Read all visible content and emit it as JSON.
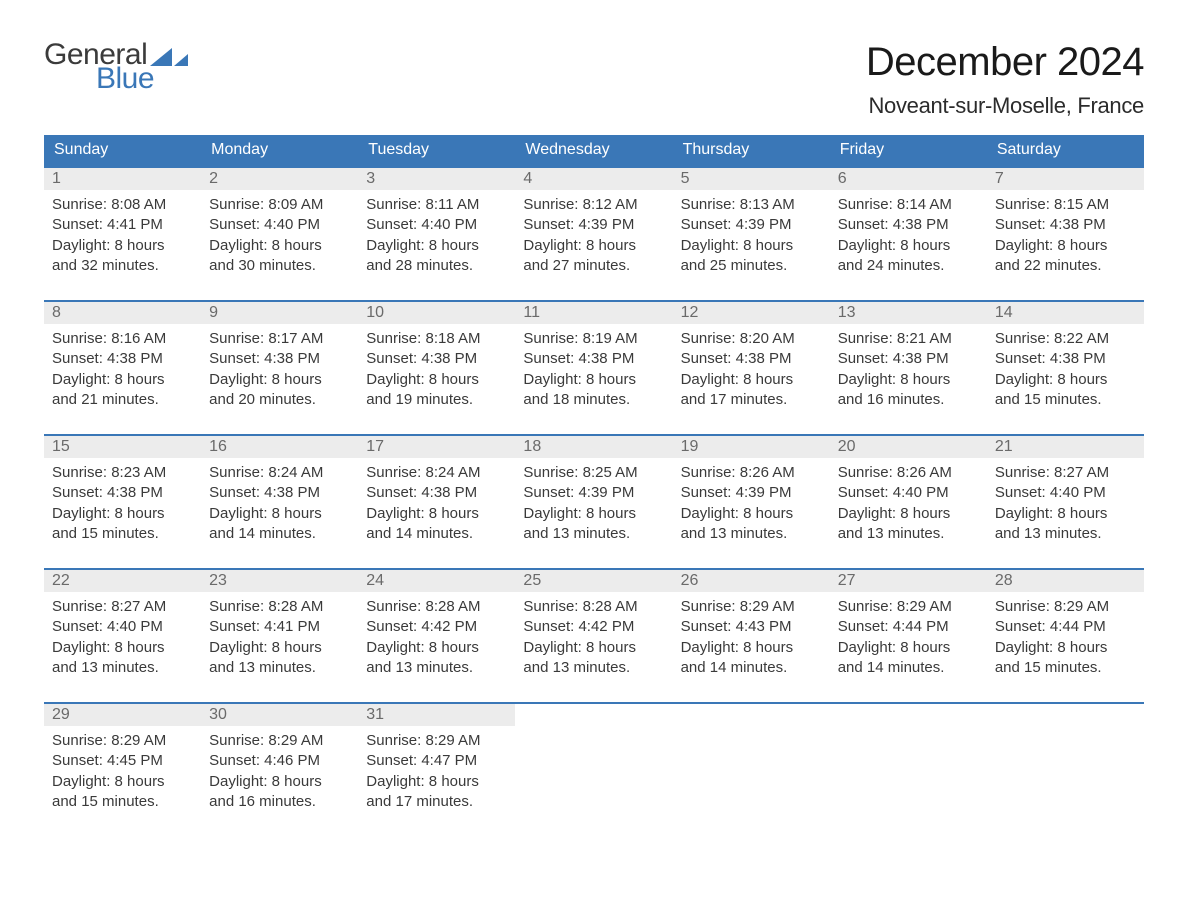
{
  "logo": {
    "word1": "General",
    "word2": "Blue"
  },
  "header": {
    "month_title": "December 2024",
    "location": "Noveant-sur-Moselle, France"
  },
  "calendar": {
    "primary_color": "#3a77b7",
    "daynum_bg": "#ececec",
    "text_color": "#3a3a3a",
    "weekdays": [
      "Sunday",
      "Monday",
      "Tuesday",
      "Wednesday",
      "Thursday",
      "Friday",
      "Saturday"
    ],
    "weeks": [
      [
        {
          "num": "1",
          "sunrise": "Sunrise: 8:08 AM",
          "sunset": "Sunset: 4:41 PM",
          "day1": "Daylight: 8 hours",
          "day2": "and 32 minutes."
        },
        {
          "num": "2",
          "sunrise": "Sunrise: 8:09 AM",
          "sunset": "Sunset: 4:40 PM",
          "day1": "Daylight: 8 hours",
          "day2": "and 30 minutes."
        },
        {
          "num": "3",
          "sunrise": "Sunrise: 8:11 AM",
          "sunset": "Sunset: 4:40 PM",
          "day1": "Daylight: 8 hours",
          "day2": "and 28 minutes."
        },
        {
          "num": "4",
          "sunrise": "Sunrise: 8:12 AM",
          "sunset": "Sunset: 4:39 PM",
          "day1": "Daylight: 8 hours",
          "day2": "and 27 minutes."
        },
        {
          "num": "5",
          "sunrise": "Sunrise: 8:13 AM",
          "sunset": "Sunset: 4:39 PM",
          "day1": "Daylight: 8 hours",
          "day2": "and 25 minutes."
        },
        {
          "num": "6",
          "sunrise": "Sunrise: 8:14 AM",
          "sunset": "Sunset: 4:38 PM",
          "day1": "Daylight: 8 hours",
          "day2": "and 24 minutes."
        },
        {
          "num": "7",
          "sunrise": "Sunrise: 8:15 AM",
          "sunset": "Sunset: 4:38 PM",
          "day1": "Daylight: 8 hours",
          "day2": "and 22 minutes."
        }
      ],
      [
        {
          "num": "8",
          "sunrise": "Sunrise: 8:16 AM",
          "sunset": "Sunset: 4:38 PM",
          "day1": "Daylight: 8 hours",
          "day2": "and 21 minutes."
        },
        {
          "num": "9",
          "sunrise": "Sunrise: 8:17 AM",
          "sunset": "Sunset: 4:38 PM",
          "day1": "Daylight: 8 hours",
          "day2": "and 20 minutes."
        },
        {
          "num": "10",
          "sunrise": "Sunrise: 8:18 AM",
          "sunset": "Sunset: 4:38 PM",
          "day1": "Daylight: 8 hours",
          "day2": "and 19 minutes."
        },
        {
          "num": "11",
          "sunrise": "Sunrise: 8:19 AM",
          "sunset": "Sunset: 4:38 PM",
          "day1": "Daylight: 8 hours",
          "day2": "and 18 minutes."
        },
        {
          "num": "12",
          "sunrise": "Sunrise: 8:20 AM",
          "sunset": "Sunset: 4:38 PM",
          "day1": "Daylight: 8 hours",
          "day2": "and 17 minutes."
        },
        {
          "num": "13",
          "sunrise": "Sunrise: 8:21 AM",
          "sunset": "Sunset: 4:38 PM",
          "day1": "Daylight: 8 hours",
          "day2": "and 16 minutes."
        },
        {
          "num": "14",
          "sunrise": "Sunrise: 8:22 AM",
          "sunset": "Sunset: 4:38 PM",
          "day1": "Daylight: 8 hours",
          "day2": "and 15 minutes."
        }
      ],
      [
        {
          "num": "15",
          "sunrise": "Sunrise: 8:23 AM",
          "sunset": "Sunset: 4:38 PM",
          "day1": "Daylight: 8 hours",
          "day2": "and 15 minutes."
        },
        {
          "num": "16",
          "sunrise": "Sunrise: 8:24 AM",
          "sunset": "Sunset: 4:38 PM",
          "day1": "Daylight: 8 hours",
          "day2": "and 14 minutes."
        },
        {
          "num": "17",
          "sunrise": "Sunrise: 8:24 AM",
          "sunset": "Sunset: 4:38 PM",
          "day1": "Daylight: 8 hours",
          "day2": "and 14 minutes."
        },
        {
          "num": "18",
          "sunrise": "Sunrise: 8:25 AM",
          "sunset": "Sunset: 4:39 PM",
          "day1": "Daylight: 8 hours",
          "day2": "and 13 minutes."
        },
        {
          "num": "19",
          "sunrise": "Sunrise: 8:26 AM",
          "sunset": "Sunset: 4:39 PM",
          "day1": "Daylight: 8 hours",
          "day2": "and 13 minutes."
        },
        {
          "num": "20",
          "sunrise": "Sunrise: 8:26 AM",
          "sunset": "Sunset: 4:40 PM",
          "day1": "Daylight: 8 hours",
          "day2": "and 13 minutes."
        },
        {
          "num": "21",
          "sunrise": "Sunrise: 8:27 AM",
          "sunset": "Sunset: 4:40 PM",
          "day1": "Daylight: 8 hours",
          "day2": "and 13 minutes."
        }
      ],
      [
        {
          "num": "22",
          "sunrise": "Sunrise: 8:27 AM",
          "sunset": "Sunset: 4:40 PM",
          "day1": "Daylight: 8 hours",
          "day2": "and 13 minutes."
        },
        {
          "num": "23",
          "sunrise": "Sunrise: 8:28 AM",
          "sunset": "Sunset: 4:41 PM",
          "day1": "Daylight: 8 hours",
          "day2": "and 13 minutes."
        },
        {
          "num": "24",
          "sunrise": "Sunrise: 8:28 AM",
          "sunset": "Sunset: 4:42 PM",
          "day1": "Daylight: 8 hours",
          "day2": "and 13 minutes."
        },
        {
          "num": "25",
          "sunrise": "Sunrise: 8:28 AM",
          "sunset": "Sunset: 4:42 PM",
          "day1": "Daylight: 8 hours",
          "day2": "and 13 minutes."
        },
        {
          "num": "26",
          "sunrise": "Sunrise: 8:29 AM",
          "sunset": "Sunset: 4:43 PM",
          "day1": "Daylight: 8 hours",
          "day2": "and 14 minutes."
        },
        {
          "num": "27",
          "sunrise": "Sunrise: 8:29 AM",
          "sunset": "Sunset: 4:44 PM",
          "day1": "Daylight: 8 hours",
          "day2": "and 14 minutes."
        },
        {
          "num": "28",
          "sunrise": "Sunrise: 8:29 AM",
          "sunset": "Sunset: 4:44 PM",
          "day1": "Daylight: 8 hours",
          "day2": "and 15 minutes."
        }
      ],
      [
        {
          "num": "29",
          "sunrise": "Sunrise: 8:29 AM",
          "sunset": "Sunset: 4:45 PM",
          "day1": "Daylight: 8 hours",
          "day2": "and 15 minutes."
        },
        {
          "num": "30",
          "sunrise": "Sunrise: 8:29 AM",
          "sunset": "Sunset: 4:46 PM",
          "day1": "Daylight: 8 hours",
          "day2": "and 16 minutes."
        },
        {
          "num": "31",
          "sunrise": "Sunrise: 8:29 AM",
          "sunset": "Sunset: 4:47 PM",
          "day1": "Daylight: 8 hours",
          "day2": "and 17 minutes."
        },
        {
          "empty": true
        },
        {
          "empty": true
        },
        {
          "empty": true
        },
        {
          "empty": true
        }
      ]
    ]
  }
}
